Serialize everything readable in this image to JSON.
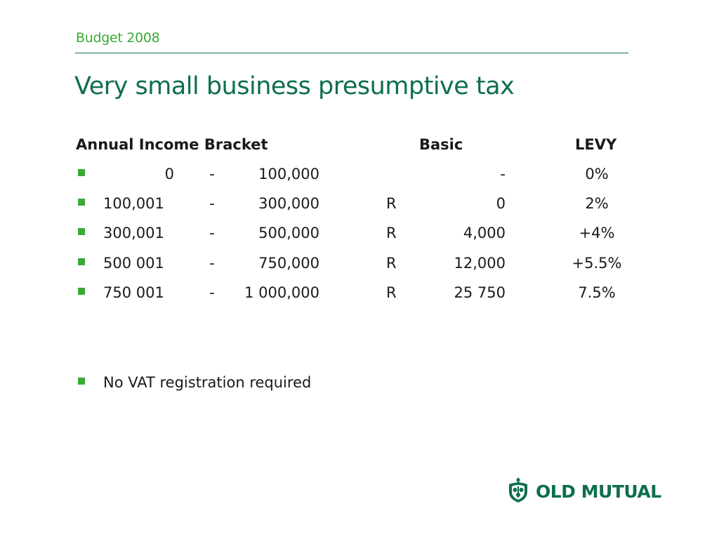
{
  "header": {
    "label": "Budget 2008",
    "title": "Very small business presumptive tax"
  },
  "table": {
    "headers": {
      "bracket": "Annual Income Bracket",
      "basic": "Basic",
      "levy": "LEVY"
    },
    "rows": [
      {
        "from": "0",
        "dash": "-",
        "to": "100,000",
        "currency": "",
        "basic": "-",
        "levy": "0%"
      },
      {
        "from": "100,001",
        "dash": "-",
        "to": "300,000",
        "currency": "R",
        "basic": "0",
        "levy": "2%"
      },
      {
        "from": "300,001",
        "dash": "-",
        "to": "500,000",
        "currency": "R",
        "basic": "4,000",
        "levy": "+4%"
      },
      {
        "from": "500 001",
        "dash": "-",
        "to": "750,000",
        "currency": "R",
        "basic": "12,000",
        "levy": "+5.5%"
      },
      {
        "from": "750 001",
        "dash": "-",
        "to": "1 000,000",
        "currency": "R",
        "basic": "25 750",
        "levy": "7.5%"
      }
    ]
  },
  "note": "No VAT registration required",
  "logo": {
    "text": "OLD MUTUAL",
    "icon": "old-mutual-crest-icon"
  },
  "colors": {
    "accent_green": "#3aaa35",
    "brand_dark_green": "#0d6e4f"
  }
}
